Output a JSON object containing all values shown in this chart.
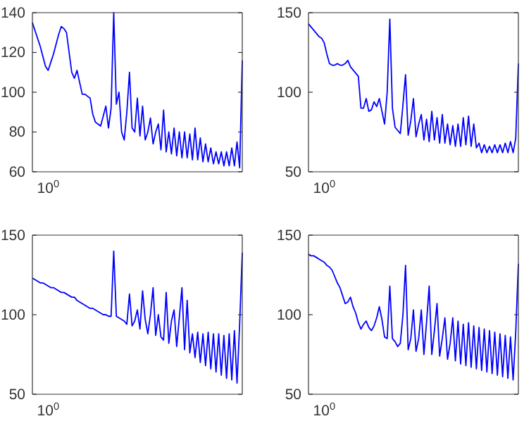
{
  "chart_data": [
    {
      "type": "line",
      "annotations": [
        "10$^{0}$"
      ],
      "ylim": [
        60,
        140
      ],
      "yticks": [
        60,
        80,
        100,
        120,
        140
      ],
      "categories": [
        null,
        null,
        null,
        null,
        null,
        null,
        null,
        null,
        null,
        null,
        null,
        null,
        null,
        null,
        null,
        null,
        null,
        null,
        null,
        null,
        null,
        null,
        null,
        null,
        null,
        null,
        null,
        null,
        null,
        null,
        null,
        null,
        null,
        null,
        null,
        null,
        null,
        null,
        null,
        null,
        null,
        null,
        null,
        null,
        null,
        null,
        null,
        null,
        null,
        null,
        null,
        null,
        null,
        null,
        null,
        null,
        null,
        null,
        null,
        null,
        null,
        null,
        null,
        null,
        null,
        null,
        null,
        null,
        null,
        null,
        null,
        null,
        null,
        null,
        null,
        null,
        null,
        null,
        null,
        null,
        null
      ],
      "series": [
        {
          "color": "#0000ff",
          "values": [
            135,
            131,
            127,
            123,
            118,
            113,
            111,
            115,
            119,
            124,
            129,
            133,
            132,
            130,
            120,
            110,
            107,
            111,
            105,
            99,
            99,
            98,
            97,
            89,
            85,
            84,
            83,
            88,
            93,
            82,
            92,
            140,
            94,
            100,
            80,
            76,
            90,
            110,
            82,
            80,
            97,
            78,
            93,
            76,
            80,
            87,
            74,
            80,
            84,
            71,
            91,
            70,
            80,
            69,
            82,
            68,
            80,
            67,
            80,
            67,
            79,
            66,
            82,
            66,
            77,
            65,
            74,
            65,
            72,
            64,
            70,
            64,
            70,
            63,
            70,
            63,
            72,
            63,
            75,
            62,
            116
          ]
        }
      ]
    },
    {
      "type": "line",
      "annotations": [
        "10$^{0}$"
      ],
      "ylim": [
        50,
        150
      ],
      "yticks": [
        50,
        100,
        150
      ],
      "categories": [
        null,
        null,
        null,
        null,
        null,
        null,
        null,
        null,
        null,
        null,
        null,
        null,
        null,
        null,
        null,
        null,
        null,
        null,
        null,
        null,
        null,
        null,
        null,
        null,
        null,
        null,
        null,
        null,
        null,
        null,
        null,
        null,
        null,
        null,
        null,
        null,
        null,
        null,
        null,
        null,
        null,
        null,
        null,
        null,
        null,
        null,
        null,
        null,
        null,
        null,
        null,
        null,
        null,
        null,
        null,
        null,
        null,
        null,
        null,
        null,
        null,
        null,
        null,
        null,
        null,
        null,
        null,
        null,
        null,
        null,
        null,
        null,
        null,
        null,
        null,
        null,
        null,
        null,
        null,
        null,
        null
      ],
      "series": [
        {
          "color": "#0000ff",
          "values": [
            143,
            141,
            139,
            137,
            135,
            134,
            131,
            124,
            118,
            117,
            117,
            118,
            117,
            117,
            118,
            120,
            116,
            114,
            112,
            110,
            90,
            90,
            96,
            88,
            89,
            94,
            91,
            96,
            88,
            80,
            100,
            146,
            90,
            78,
            76,
            74,
            92,
            111,
            73,
            82,
            96,
            72,
            80,
            86,
            70,
            83,
            69,
            88,
            70,
            84,
            68,
            86,
            68,
            80,
            67,
            79,
            66,
            80,
            66,
            84,
            67,
            85,
            66,
            80,
            65,
            68,
            62,
            67,
            62,
            66,
            62,
            67,
            62,
            67,
            62,
            68,
            62,
            69,
            62,
            71,
            118
          ]
        }
      ]
    },
    {
      "type": "line",
      "annotations": [
        "10$^{0}$"
      ],
      "ylim": [
        50,
        150
      ],
      "yticks": [
        50,
        100,
        150
      ],
      "categories": [
        null,
        null,
        null,
        null,
        null,
        null,
        null,
        null,
        null,
        null,
        null,
        null,
        null,
        null,
        null,
        null,
        null,
        null,
        null,
        null,
        null,
        null,
        null,
        null,
        null,
        null,
        null,
        null,
        null,
        null,
        null,
        null,
        null,
        null,
        null,
        null,
        null,
        null,
        null,
        null,
        null,
        null,
        null,
        null,
        null,
        null,
        null,
        null,
        null,
        null,
        null,
        null,
        null,
        null,
        null,
        null,
        null,
        null,
        null,
        null,
        null,
        null,
        null,
        null,
        null,
        null,
        null,
        null,
        null,
        null,
        null,
        null,
        null,
        null,
        null,
        null,
        null,
        null,
        null,
        null,
        null
      ],
      "series": [
        {
          "color": "#0000ff",
          "values": [
            123,
            122,
            121,
            120,
            120,
            119,
            118,
            117,
            117,
            116,
            115,
            114,
            114,
            113,
            112,
            111,
            111,
            109,
            108,
            107,
            106,
            105,
            104,
            104,
            103,
            102,
            101,
            100,
            100,
            99,
            99,
            140,
            99,
            98,
            97,
            96,
            94,
            113,
            93,
            96,
            103,
            91,
            115,
            97,
            88,
            100,
            117,
            87,
            100,
            86,
            84,
            114,
            82,
            96,
            103,
            80,
            98,
            117,
            78,
            109,
            76,
            88,
            73,
            89,
            70,
            88,
            68,
            89,
            66,
            88,
            64,
            88,
            62,
            87,
            60,
            88,
            59,
            90,
            57,
            94,
            139
          ]
        }
      ]
    },
    {
      "type": "line",
      "annotations": [
        "10$^{0}$"
      ],
      "ylim": [
        50,
        150
      ],
      "yticks": [
        50,
        100,
        150
      ],
      "categories": [
        null,
        null,
        null,
        null,
        null,
        null,
        null,
        null,
        null,
        null,
        null,
        null,
        null,
        null,
        null,
        null,
        null,
        null,
        null,
        null,
        null,
        null,
        null,
        null,
        null,
        null,
        null,
        null,
        null,
        null,
        null,
        null,
        null,
        null,
        null,
        null,
        null,
        null,
        null,
        null,
        null,
        null,
        null,
        null,
        null,
        null,
        null,
        null,
        null,
        null,
        null,
        null,
        null,
        null,
        null,
        null,
        null,
        null,
        null,
        null,
        null,
        null,
        null,
        null,
        null,
        null,
        null,
        null,
        null,
        null,
        null,
        null,
        null,
        null,
        null,
        null,
        null,
        null,
        null,
        null,
        null
      ],
      "series": [
        {
          "color": "#0000ff",
          "values": [
            138,
            137,
            137,
            136,
            135,
            134,
            133,
            131,
            130,
            128,
            124,
            120,
            117,
            112,
            107,
            108,
            111,
            105,
            101,
            95,
            91,
            94,
            96,
            92,
            90,
            93,
            98,
            105,
            97,
            86,
            85,
            118,
            85,
            83,
            80,
            82,
            100,
            131,
            78,
            85,
            103,
            77,
            85,
            103,
            75,
            95,
            118,
            75,
            90,
            107,
            74,
            85,
            98,
            72,
            82,
            98,
            71,
            96,
            69,
            94,
            68,
            95,
            67,
            93,
            66,
            92,
            65,
            91,
            64,
            90,
            63,
            89,
            62,
            88,
            61,
            87,
            60,
            86,
            59,
            89,
            132
          ]
        }
      ]
    }
  ]
}
